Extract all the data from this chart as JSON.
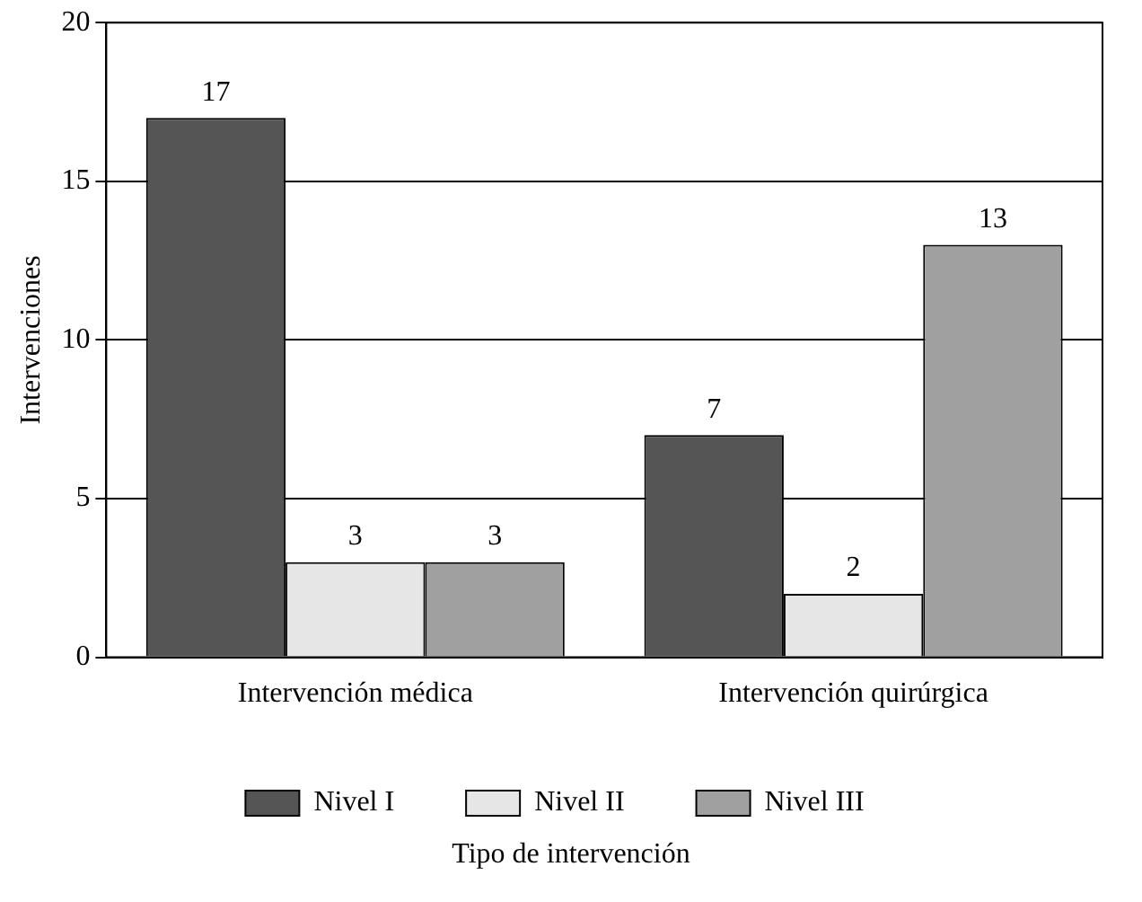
{
  "chart_data": {
    "type": "bar",
    "xlabel": "Tipo de intervención",
    "ylabel": "Intervenciones",
    "categories": [
      "Intervención médica",
      "Intervención quirúrgica"
    ],
    "series": [
      {
        "name": "Nivel I",
        "color": "#555555",
        "values": [
          17,
          7
        ]
      },
      {
        "name": "Nivel II",
        "color": "#e6e6e6",
        "values": [
          3,
          2
        ]
      },
      {
        "name": "Nivel III",
        "color": "#a0a0a0",
        "values": [
          3,
          13
        ]
      }
    ],
    "ylim": [
      0,
      20
    ],
    "yticks": [
      0,
      5,
      10,
      15,
      20
    ],
    "grid": "y",
    "legend": "bottom",
    "data_labels": true
  }
}
